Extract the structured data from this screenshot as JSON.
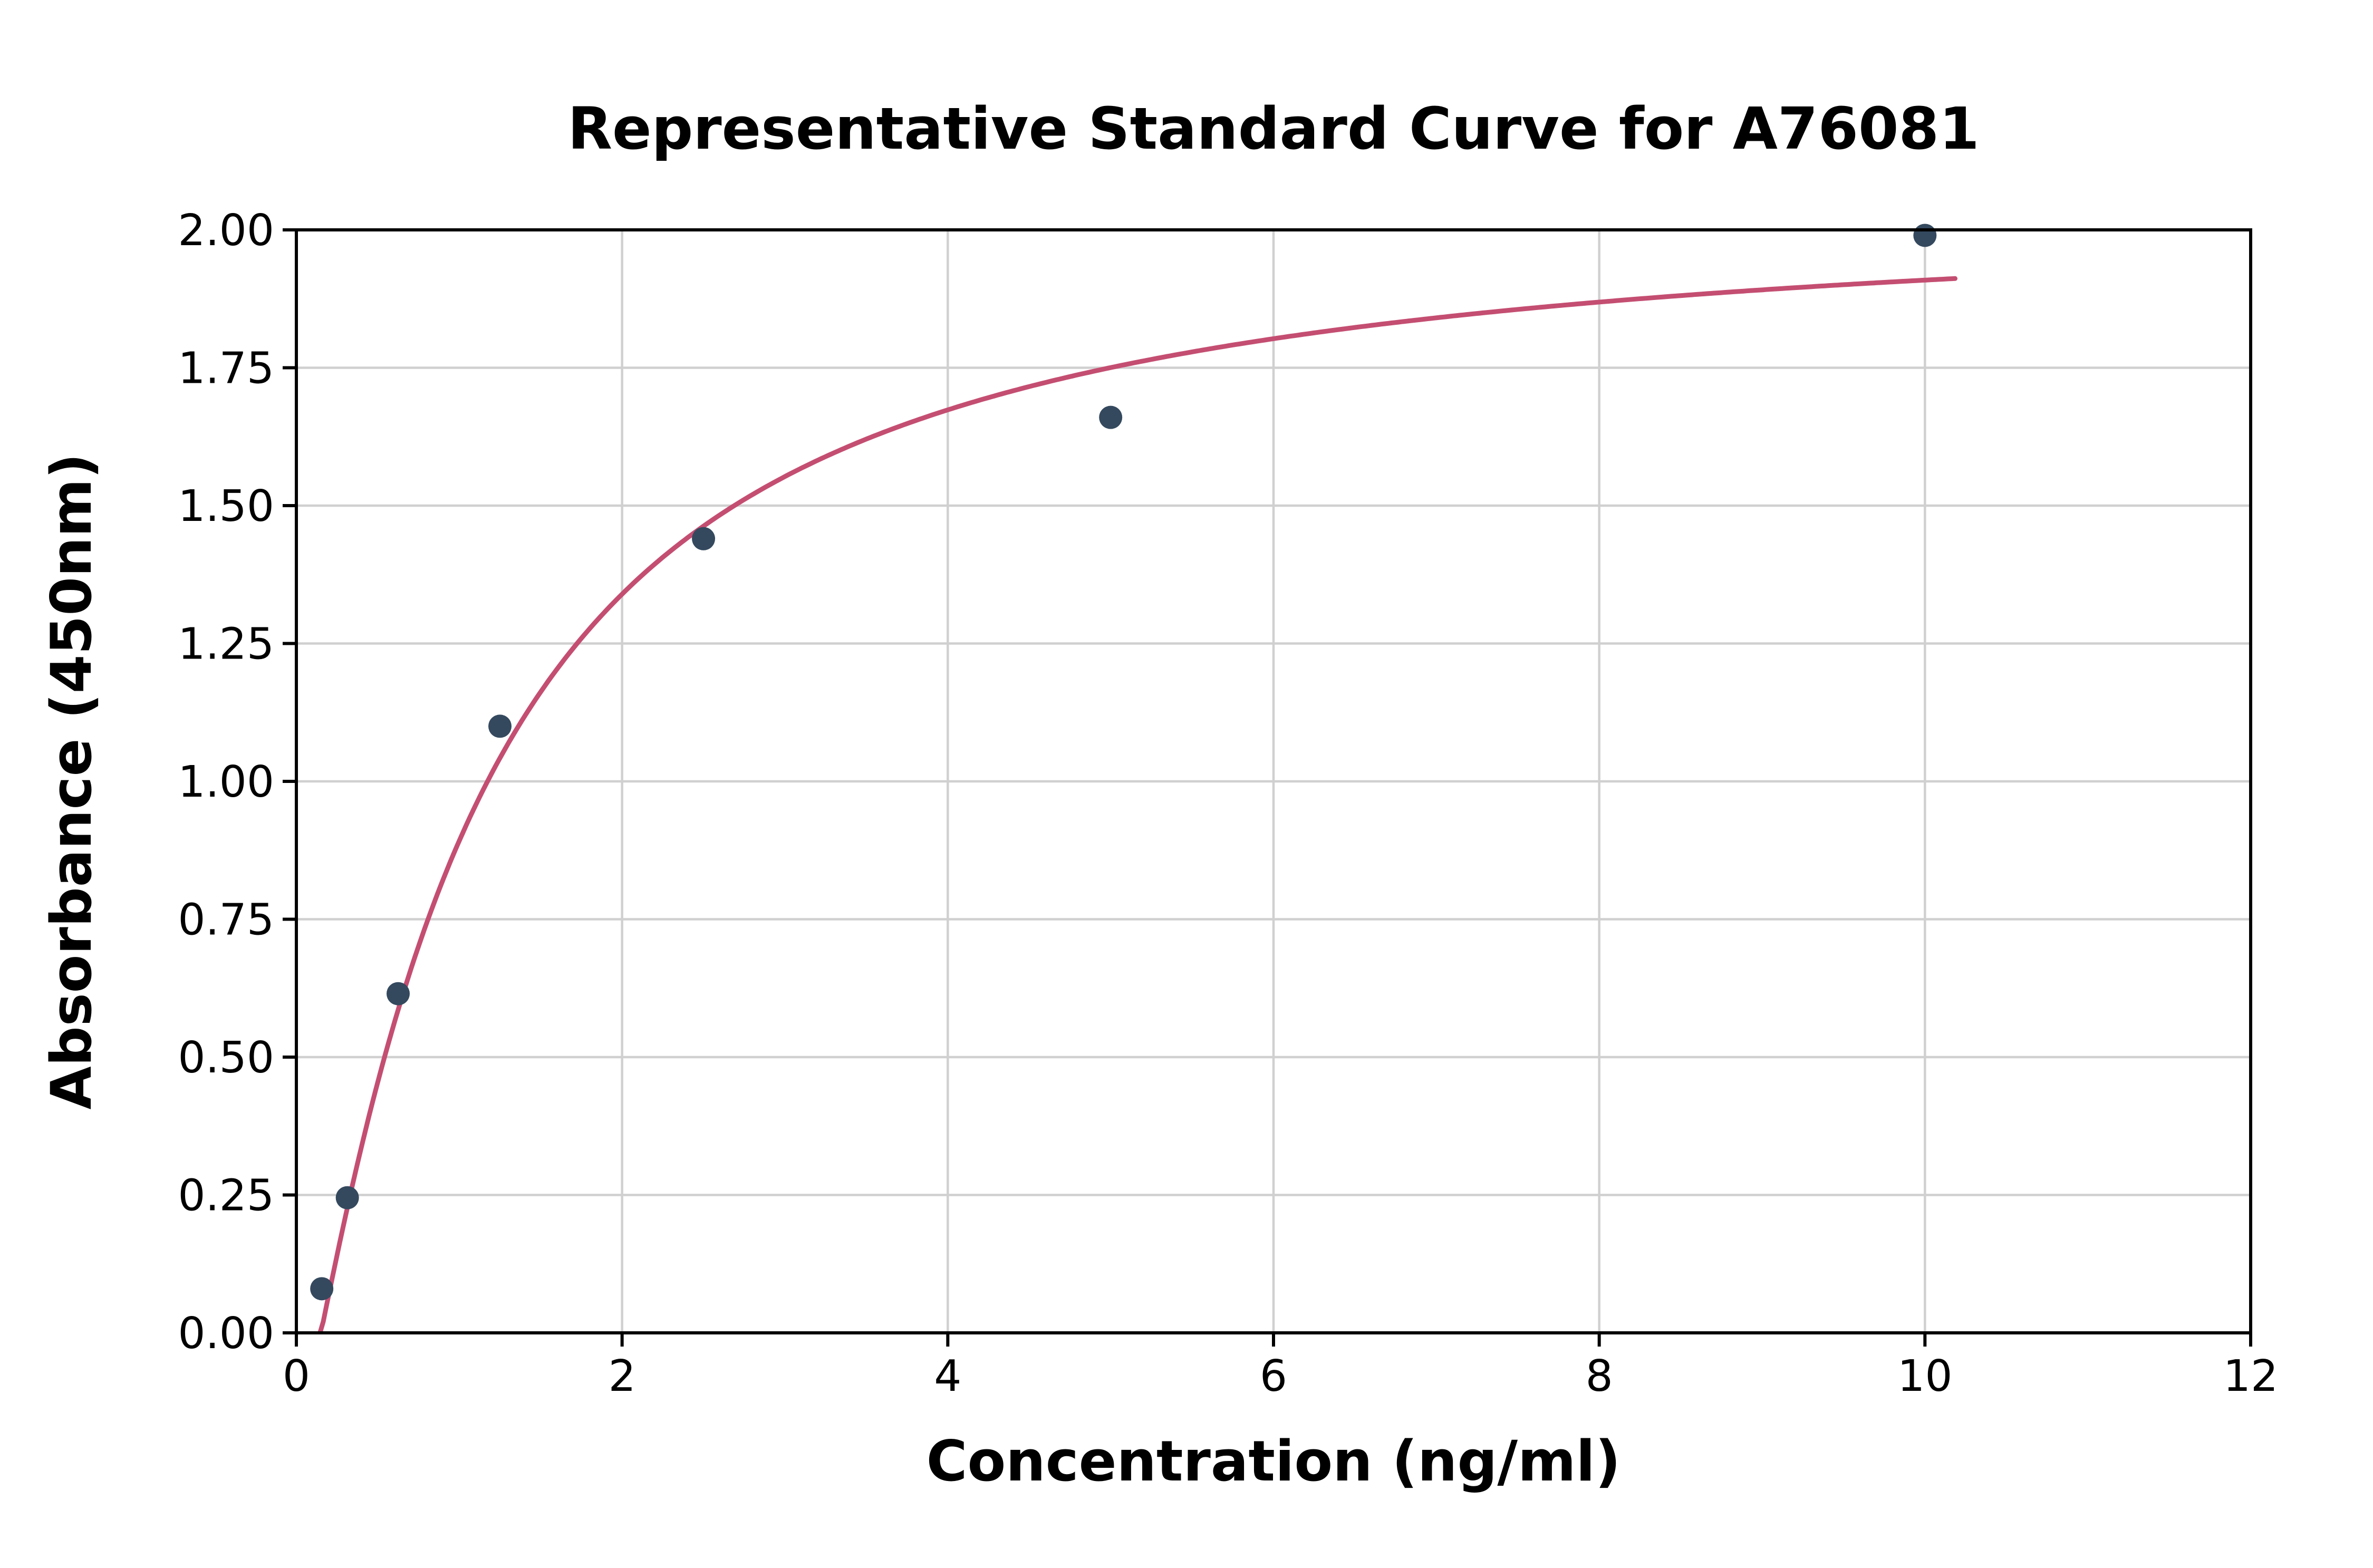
{
  "figure": {
    "background": "#ffffff"
  },
  "chart_data": {
    "type": "scatter",
    "title": "Representative Standard Curve for A76081",
    "xlabel": "Concentration (ng/ml)",
    "ylabel": "Absorbance (450nm)",
    "xlim": [
      0,
      12
    ],
    "ylim": [
      0,
      2
    ],
    "xticks": [
      0,
      2,
      4,
      6,
      8,
      10,
      12
    ],
    "xtick_labels": [
      "0",
      "2",
      "4",
      "6",
      "8",
      "10",
      "12"
    ],
    "yticks": [
      0,
      0.25,
      0.5,
      0.75,
      1,
      1.25,
      1.5,
      1.75,
      2
    ],
    "ytick_labels": [
      "0.00",
      "0.25",
      "0.50",
      "0.75",
      "1.00",
      "1.25",
      "1.50",
      "1.75",
      "2.00"
    ],
    "grid": true,
    "legend": false,
    "grid_color": "#d0d0d0",
    "axis_color": "#000000",
    "series": [
      {
        "name": "standard-points",
        "type": "scatter",
        "x": [
          0.156,
          0.313,
          0.625,
          1.25,
          2.5,
          5,
          10
        ],
        "y": [
          0.08,
          0.245,
          0.615,
          1.1,
          1.44,
          1.66,
          1.99
        ],
        "color": "#34495e",
        "marker_radius": 22
      },
      {
        "name": "fit-curve",
        "type": "line",
        "model": "4pl",
        "params": {
          "a": -0.2,
          "b": 1.2,
          "c": 1.05,
          "d": 2.05
        },
        "x_range": [
          0.145,
          10.2
        ],
        "color": "#c44e72",
        "line_width": 9
      }
    ]
  }
}
